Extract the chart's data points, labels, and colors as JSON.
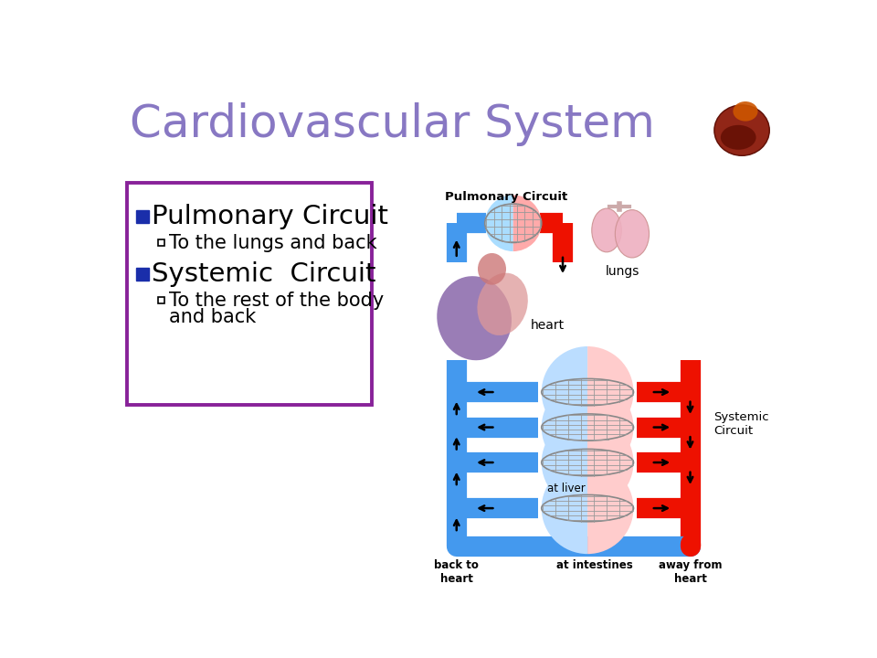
{
  "title": "Cardiovascular System",
  "title_color": "#8878C3",
  "title_fontsize": 36,
  "background_color": "#ffffff",
  "bullet_color": "#1A2EAA",
  "box_border_color": "#882299",
  "bullet1": "Pulmonary Circuit",
  "sub1": "  To the lungs and back",
  "bullet2": "Systemic  Circuit",
  "sub2": "  To the rest of the body\n  and back",
  "blue_color": "#4499EE",
  "red_color": "#EE1100",
  "label_pulmonary": "Pulmonary Circuit",
  "label_lungs": "lungs",
  "label_heart": "heart",
  "label_systemic": "Systemic\nCircuit",
  "label_liver": "at liver",
  "label_intestines": "at intestines",
  "label_back": "back to\nheart",
  "label_away": "away from\nheart"
}
